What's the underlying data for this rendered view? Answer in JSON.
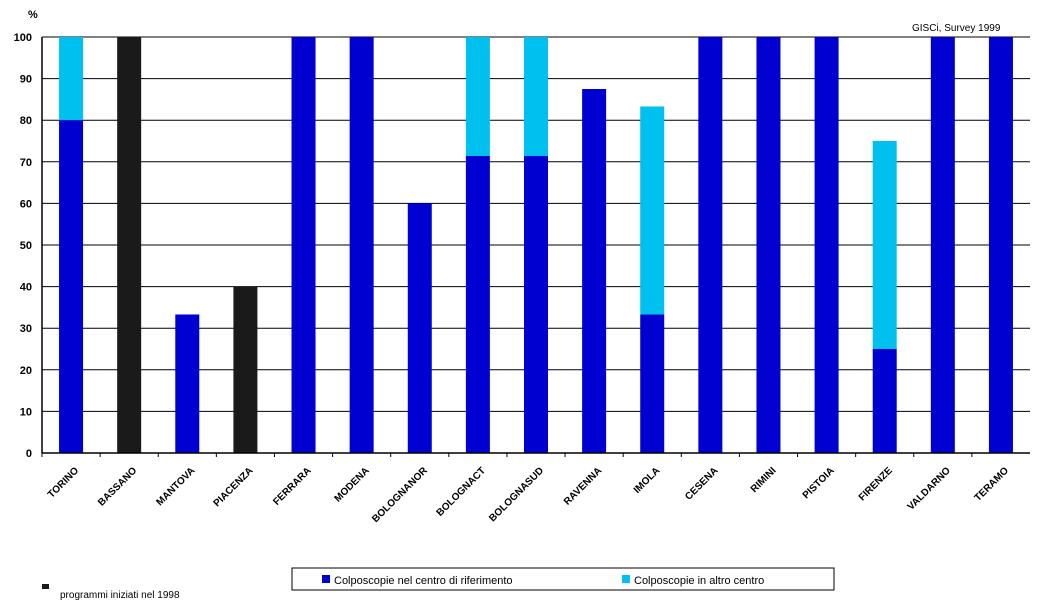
{
  "chart_data": {
    "type": "bar",
    "stacked": true,
    "ylabel": "%",
    "ylim": [
      0,
      100
    ],
    "yticks": [
      0,
      10,
      20,
      30,
      40,
      50,
      60,
      70,
      80,
      90,
      100
    ],
    "grid": true,
    "source_note": "GISCi,   Survey 1999",
    "categories": [
      "TORINO",
      "BASSANO",
      "MANTOVA",
      "PIACENZA",
      "FERRARA",
      "MODENA",
      "BOLOGNANOR",
      "BOLOGNACT",
      "BOLOGNASUD",
      "RAVENNA",
      "IMOLA",
      "CESENA",
      "RIMINI",
      "PISTOIA",
      "FIRENZE",
      "VALDARNO",
      "TERAMO"
    ],
    "series": [
      {
        "name": "Colposcopie nel centro di riferimento",
        "color": "#0000d0",
        "values": [
          80,
          100,
          33.3,
          40,
          100,
          100,
          60,
          71.4,
          71.4,
          87.5,
          33.3,
          100,
          100,
          100,
          25,
          100,
          100
        ]
      },
      {
        "name": "Colposcopie in altro centro",
        "color": "#00c0f0",
        "values": [
          20,
          0,
          0,
          0,
          0,
          0,
          0,
          28.6,
          28.6,
          0,
          50,
          0,
          0,
          0,
          50,
          0,
          0
        ]
      }
    ],
    "highlight": {
      "categories": [
        "BASSANO",
        "PIACENZA"
      ],
      "color": "#1a1a1a",
      "label": "programmi iniziati nel 1998"
    },
    "legend_position": "bottom"
  }
}
